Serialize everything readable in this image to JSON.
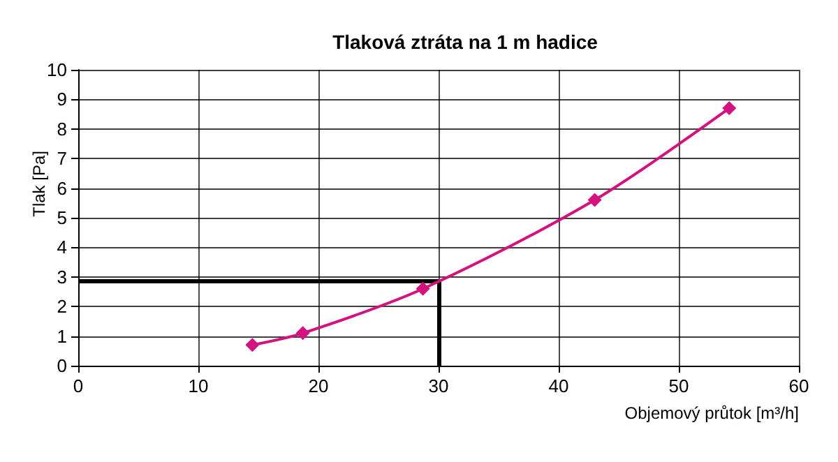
{
  "chart_data": {
    "type": "line",
    "title": "Tlaková ztráta na 1 m hadice",
    "xlabel": "Objemový průtok [m³/h]",
    "ylabel": "Tlak [Pa]",
    "x": [
      14.5,
      18.7,
      28.7,
      43,
      54.2
    ],
    "series": [
      {
        "color": "#d4127f",
        "values": [
          0.7,
          1.1,
          2.6,
          5.6,
          8.7
        ]
      }
    ],
    "xlim": [
      0,
      60
    ],
    "xticks": [
      0,
      10,
      20,
      30,
      40,
      50,
      60
    ],
    "ylim": [
      0,
      10
    ],
    "yticks": [
      0,
      1,
      2,
      3,
      4,
      5,
      6,
      7,
      8,
      9,
      10
    ],
    "grid": true,
    "marker": "diamond",
    "line_style": "solid",
    "ref_lines": [
      {
        "axis": "x",
        "value": 30,
        "color": "#000000"
      },
      {
        "axis": "y",
        "value": 2.85,
        "color": "#000000"
      }
    ]
  }
}
